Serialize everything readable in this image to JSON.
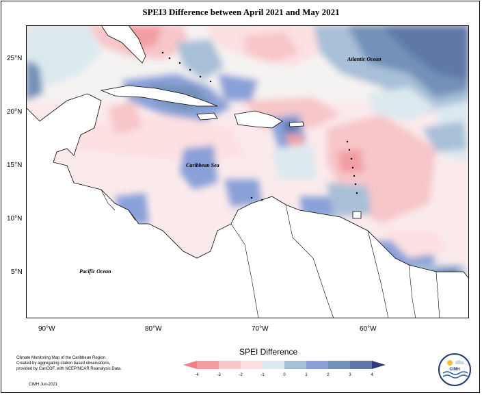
{
  "title": "SPEI3 Difference between April 2021 and May 2021",
  "labels": {
    "atlantic": "Atlantic Ocean",
    "caribbean": "Caribbean Sea",
    "pacific": "Pacific Ocean"
  },
  "axes": {
    "lat_ticks": [
      "25°N",
      "20°N",
      "15°N",
      "10°N",
      "5°N"
    ],
    "lon_ticks": [
      "90°W",
      "80°W",
      "70°W",
      "60°W"
    ]
  },
  "legend": {
    "title": "SPEI Difference",
    "ticks": [
      "-4",
      "-3",
      "-2",
      "-1",
      "0",
      "1",
      "2",
      "3",
      "4"
    ],
    "colors": [
      "#f29ea3",
      "#f7c6c9",
      "#fde0e2",
      "#dbe9ef",
      "#a8bfd8",
      "#8aa0d8",
      "#7391b8",
      "#5f78a8",
      "#3d4a8a"
    ],
    "below_color": "#f47f86",
    "above_color": "#2e3a7a"
  },
  "credit": {
    "line1": "Climate Monitoring Map of the Caribbean Region.",
    "line2": "Created by aggregating station based observations,",
    "line3": "provided by CariCOF, with NCEP/NCAR Reanalysis Data.",
    "date": "CIMH Jun-2021"
  },
  "logo": {
    "text": "CIMH"
  }
}
